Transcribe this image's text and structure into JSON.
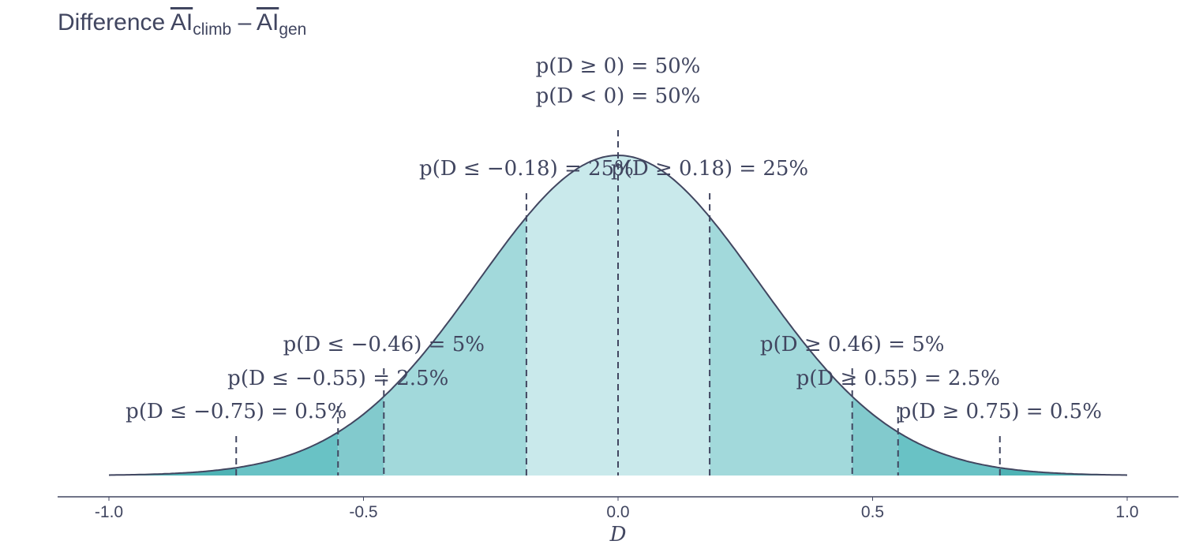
{
  "chart_data": {
    "type": "area",
    "title": {
      "main": "Difference ",
      "t1": "AI",
      "s1": "climb",
      "minus": " – ",
      "t2": "AI",
      "s2": "gen"
    },
    "xlabel": "D",
    "ylabel": "",
    "xlim": [
      -1.0,
      1.0
    ],
    "x_ticks": [
      -1.0,
      -0.5,
      0.0,
      0.5,
      1.0
    ],
    "x_tick_labels": [
      "-1.0",
      "-0.5",
      "0.0",
      "0.5",
      "1.0"
    ],
    "distribution": {
      "family": "normal",
      "mean": 0.0,
      "sd": 0.275
    },
    "quantiles": [
      -0.75,
      -0.55,
      -0.46,
      -0.18,
      0.0,
      0.18,
      0.46,
      0.55,
      0.75
    ],
    "region_colors": [
      "#4fb3b5",
      "#69c2c5",
      "#82cacd",
      "#a2d9db",
      "#c9e9eb",
      "#c9e9eb",
      "#a2d9db",
      "#82cacd",
      "#69c2c5",
      "#4fb3b5"
    ],
    "curve_color": "#414660",
    "annotations": [
      {
        "x": -0.75,
        "label": "p(D ≤ −0.75) = 0.5%"
      },
      {
        "x": -0.55,
        "label": "p(D ≤ −0.55) = 2.5%"
      },
      {
        "x": -0.46,
        "label": "p(D ≤ −0.46) = 5%"
      },
      {
        "x": -0.18,
        "label": "p(D ≤ −0.18) = 25%"
      },
      {
        "x": 0.0,
        "label": "p(D ≥ 0) = 50%"
      },
      {
        "x": 0.0,
        "label": "p(D < 0) = 50%"
      },
      {
        "x": 0.18,
        "label": "p(D ≥ 0.18) = 25%"
      },
      {
        "x": 0.46,
        "label": "p(D ≥ 0.46) = 5%"
      },
      {
        "x": 0.55,
        "label": "p(D ≥ 0.55) = 2.5%"
      },
      {
        "x": 0.75,
        "label": "p(D ≥ 0.75) = 0.5%"
      }
    ]
  }
}
